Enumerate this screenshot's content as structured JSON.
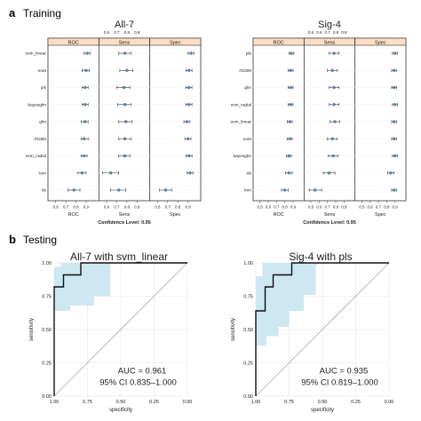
{
  "section_a": {
    "letter": "a",
    "label": "Training"
  },
  "section_b": {
    "letter": "b",
    "label": "Testing"
  },
  "panels_label_confidence": "Confidence Level: 0.95",
  "chart_data": [
    {
      "type": "dotplot",
      "title": "All-7",
      "facets": [
        "ROC",
        "Sens",
        "Spec"
      ],
      "xlim": [
        0.55,
        1.0
      ],
      "ticks_top": [
        "0.6",
        "0.7",
        "0.8",
        "0.9"
      ],
      "ticks_bottom": [
        "0.6",
        "0.7",
        "0.8",
        "0.9"
      ],
      "confidence_label": "Confidence Level: 0.95",
      "models": [
        "svm_linear",
        "nnet",
        "pls",
        "bayesglm",
        "glm",
        "rf1000",
        "svm_radial",
        "knn",
        "nb"
      ],
      "ROC": [
        [
          0.91,
          0.88,
          0.94
        ],
        [
          0.9,
          0.86,
          0.93
        ],
        [
          0.89,
          0.86,
          0.92
        ],
        [
          0.89,
          0.86,
          0.92
        ],
        [
          0.89,
          0.85,
          0.92
        ],
        [
          0.88,
          0.85,
          0.92
        ],
        [
          0.88,
          0.85,
          0.91
        ],
        [
          0.86,
          0.82,
          0.9
        ],
        [
          0.78,
          0.72,
          0.84
        ]
      ],
      "Sens": [
        [
          0.78,
          0.72,
          0.84
        ],
        [
          0.8,
          0.73,
          0.86
        ],
        [
          0.77,
          0.7,
          0.83
        ],
        [
          0.78,
          0.71,
          0.84
        ],
        [
          0.79,
          0.72,
          0.85
        ],
        [
          0.78,
          0.72,
          0.84
        ],
        [
          0.78,
          0.72,
          0.83
        ],
        [
          0.64,
          0.56,
          0.72
        ],
        [
          0.72,
          0.64,
          0.79
        ]
      ],
      "Spec": [
        [
          0.93,
          0.9,
          0.96
        ],
        [
          0.91,
          0.88,
          0.94
        ],
        [
          0.91,
          0.88,
          0.94
        ],
        [
          0.91,
          0.88,
          0.94
        ],
        [
          0.89,
          0.86,
          0.92
        ],
        [
          0.9,
          0.87,
          0.93
        ],
        [
          0.91,
          0.88,
          0.94
        ],
        [
          0.92,
          0.89,
          0.95
        ],
        [
          0.68,
          0.62,
          0.74
        ]
      ]
    },
    {
      "type": "dotplot",
      "title": "Sig-4",
      "facets": [
        "ROC",
        "Sens",
        "Spec"
      ],
      "xlim": [
        0.45,
        1.0
      ],
      "ticks_top": [
        "0.5",
        "0.6",
        "0.7",
        "0.8",
        "0.9"
      ],
      "ticks_bottom": [
        "0.5",
        "0.6",
        "0.7",
        "0.8",
        "0.9"
      ],
      "confidence_label": "Confidence Level: 0.95",
      "models": [
        "pls",
        "rf1000",
        "glm",
        "svm_radial",
        "svm_linear",
        "nnet",
        "bayesglm",
        "nb",
        "knn"
      ],
      "ROC": [
        [
          0.88,
          0.85,
          0.91
        ],
        [
          0.87,
          0.84,
          0.9
        ],
        [
          0.87,
          0.84,
          0.9
        ],
        [
          0.87,
          0.84,
          0.9
        ],
        [
          0.86,
          0.83,
          0.89
        ],
        [
          0.86,
          0.83,
          0.89
        ],
        [
          0.85,
          0.82,
          0.88
        ],
        [
          0.85,
          0.81,
          0.89
        ],
        [
          0.8,
          0.76,
          0.84
        ]
      ],
      "Sens": [
        [
          0.78,
          0.72,
          0.84
        ],
        [
          0.76,
          0.7,
          0.82
        ],
        [
          0.78,
          0.72,
          0.84
        ],
        [
          0.78,
          0.72,
          0.84
        ],
        [
          0.79,
          0.73,
          0.85
        ],
        [
          0.76,
          0.7,
          0.82
        ],
        [
          0.77,
          0.71,
          0.83
        ],
        [
          0.72,
          0.65,
          0.79
        ],
        [
          0.55,
          0.48,
          0.63
        ]
      ],
      "Spec": [
        [
          0.9,
          0.87,
          0.93
        ],
        [
          0.89,
          0.86,
          0.92
        ],
        [
          0.89,
          0.86,
          0.92
        ],
        [
          0.9,
          0.87,
          0.93
        ],
        [
          0.89,
          0.86,
          0.92
        ],
        [
          0.89,
          0.86,
          0.92
        ],
        [
          0.9,
          0.87,
          0.93
        ],
        [
          0.85,
          0.81,
          0.89
        ],
        [
          0.89,
          0.86,
          0.92
        ]
      ]
    },
    {
      "type": "roc",
      "title": "All-7 with svm_linear",
      "xlabel": "specificity",
      "ylabel": "sensitivity",
      "x_ticks": [
        "1.00",
        "0.75",
        "0.50",
        "0.25",
        "0.00"
      ],
      "y_ticks": [
        "0.00",
        "0.25",
        "0.50",
        "0.75",
        "1.00"
      ],
      "auc_text": "AUC = 0.961",
      "ci_text": "95% CI 0.835–1.000",
      "curve": [
        [
          1.0,
          0.0
        ],
        [
          1.0,
          0.82
        ],
        [
          0.93,
          0.82
        ],
        [
          0.93,
          0.91
        ],
        [
          0.8,
          0.91
        ],
        [
          0.8,
          1.0
        ],
        [
          0.0,
          1.0
        ]
      ],
      "ci_band_upper": [
        [
          1.0,
          0.97
        ],
        [
          0.95,
          0.97
        ],
        [
          0.95,
          1.0
        ],
        [
          0.58,
          1.0
        ]
      ],
      "ci_band_lower": [
        [
          1.0,
          0.64
        ],
        [
          0.88,
          0.64
        ],
        [
          0.88,
          0.68
        ],
        [
          0.7,
          0.68
        ],
        [
          0.7,
          0.75
        ],
        [
          0.58,
          0.75
        ],
        [
          0.58,
          0.98
        ]
      ]
    },
    {
      "type": "roc",
      "title": "Sig-4 with pls",
      "xlabel": "specificity",
      "ylabel": "sensitivity",
      "x_ticks": [
        "1.00",
        "0.75",
        "0.50",
        "0.25",
        "0.00"
      ],
      "y_ticks": [
        "0.00",
        "0.25",
        "0.50",
        "0.75",
        "1.00"
      ],
      "auc_text": "AUC = 0.935",
      "ci_text": "95% CI 0.819–1.000",
      "curve": [
        [
          1.0,
          0.0
        ],
        [
          1.0,
          0.64
        ],
        [
          0.93,
          0.64
        ],
        [
          0.93,
          0.82
        ],
        [
          0.87,
          0.82
        ],
        [
          0.87,
          0.91
        ],
        [
          0.73,
          0.91
        ],
        [
          0.73,
          1.0
        ],
        [
          0.0,
          1.0
        ]
      ],
      "ci_band_upper": [
        [
          1.0,
          0.9
        ],
        [
          0.95,
          0.9
        ],
        [
          0.95,
          1.0
        ],
        [
          0.52,
          1.0
        ]
      ],
      "ci_band_lower": [
        [
          1.0,
          0.38
        ],
        [
          0.92,
          0.38
        ],
        [
          0.92,
          0.45
        ],
        [
          0.83,
          0.45
        ],
        [
          0.83,
          0.52
        ],
        [
          0.75,
          0.52
        ],
        [
          0.75,
          0.64
        ],
        [
          0.64,
          0.64
        ],
        [
          0.64,
          0.76
        ],
        [
          0.55,
          0.76
        ],
        [
          0.55,
          0.98
        ]
      ]
    }
  ]
}
